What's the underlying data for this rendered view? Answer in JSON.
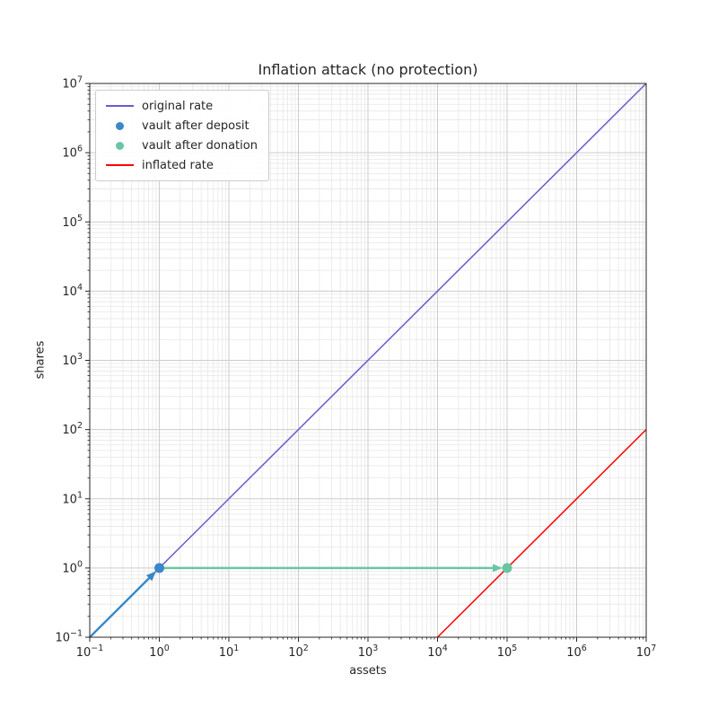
{
  "chart_data": {
    "type": "line",
    "title": "Inflation attack (no protection)",
    "xlabel": "assets",
    "ylabel": "shares",
    "xscale": "log",
    "yscale": "log",
    "xlim": [
      0.1,
      10000000
    ],
    "ylim": [
      0.1,
      10000000
    ],
    "x_tick_exponents": [
      -1,
      0,
      1,
      2,
      3,
      4,
      5,
      6,
      7
    ],
    "y_tick_exponents": [
      -1,
      0,
      1,
      2,
      3,
      4,
      5,
      6,
      7
    ],
    "grid": "both",
    "legend_position": "upper left",
    "series": [
      {
        "name": "original rate",
        "type": "line",
        "color": "#6A5ACD",
        "width": 1.5,
        "points": [
          [
            0.1,
            0.1
          ],
          [
            10000000,
            10000000
          ]
        ]
      },
      {
        "name": "vault after deposit",
        "type": "scatter",
        "color": "#3A87C9",
        "size": 5.5,
        "points": [
          [
            1,
            1
          ]
        ]
      },
      {
        "name": "vault after donation",
        "type": "scatter",
        "color": "#69C6A3",
        "size": 5.5,
        "points": [
          [
            100000,
            1
          ]
        ]
      },
      {
        "name": "inflated rate",
        "type": "line",
        "color": "#FF0000",
        "width": 1.5,
        "points": [
          [
            10000,
            0.1
          ],
          [
            10000000,
            100
          ]
        ]
      }
    ],
    "annotations": [
      {
        "name": "deposit-arrow",
        "color": "#3A87C9",
        "from": [
          0.1,
          0.1
        ],
        "to": [
          1,
          1
        ]
      },
      {
        "name": "donation-arrow",
        "color": "#69C6A3",
        "from": [
          1,
          1
        ],
        "to": [
          100000,
          1
        ]
      }
    ],
    "colors": {
      "grid_major": "#cccccc",
      "grid_minor": "#e7e7e7",
      "spine": "#262626",
      "tick": "#262626",
      "background": "#ffffff",
      "legend_border": "#cccccc"
    }
  }
}
